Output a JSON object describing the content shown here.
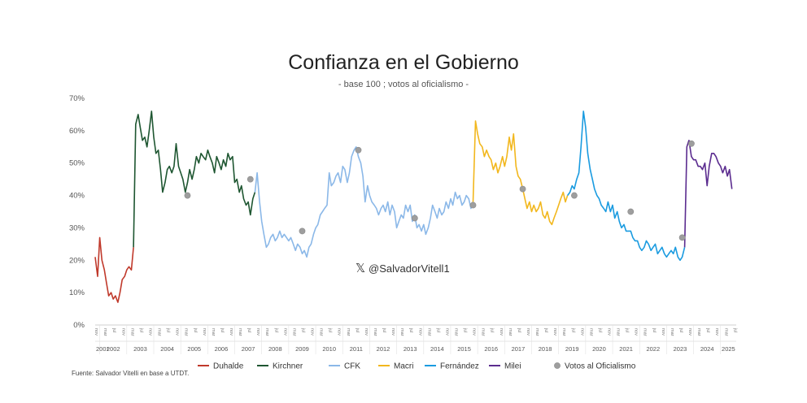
{
  "chart_data": {
    "type": "line",
    "title": "Confianza en el Gobierno",
    "subtitle": "- base 100 ; votos al oficialismo -",
    "handle": "@SalvadorVitell1",
    "source": "Fuente: Salvador Vitelli en base a UTDT.",
    "ylim": [
      0,
      70
    ],
    "y_ticks": [
      "0%",
      "10%",
      "20%",
      "30%",
      "40%",
      "50%",
      "60%",
      "70%"
    ],
    "x_range": [
      2001.83,
      2025.58
    ],
    "year_labels": [
      "2001",
      "2002",
      "2003",
      "2004",
      "2005",
      "2006",
      "2007",
      "2008",
      "2009",
      "2010",
      "2011",
      "2012",
      "2013",
      "2014",
      "2015",
      "2016",
      "2017",
      "2018",
      "2019",
      "2020",
      "2021",
      "2022",
      "2023",
      "2024",
      "2025"
    ],
    "month_labels": [
      "nov",
      "mar",
      "jul"
    ],
    "grid": false,
    "legend_position": "bottom",
    "series": [
      {
        "name": "Duhalde",
        "color": "#c0392b",
        "points": [
          [
            2001.83,
            21
          ],
          [
            2001.92,
            15
          ],
          [
            2002.0,
            27
          ],
          [
            2002.08,
            20
          ],
          [
            2002.17,
            17
          ],
          [
            2002.25,
            13
          ],
          [
            2002.33,
            9
          ],
          [
            2002.42,
            10
          ],
          [
            2002.5,
            8
          ],
          [
            2002.58,
            9
          ],
          [
            2002.67,
            7
          ],
          [
            2002.75,
            10
          ],
          [
            2002.83,
            14
          ],
          [
            2002.92,
            15
          ],
          [
            2003.0,
            17
          ],
          [
            2003.08,
            18
          ],
          [
            2003.17,
            17
          ],
          [
            2003.25,
            24
          ]
        ]
      },
      {
        "name": "Kirchner",
        "color": "#1e5631",
        "points": [
          [
            2003.25,
            24
          ],
          [
            2003.33,
            62
          ],
          [
            2003.42,
            65
          ],
          [
            2003.5,
            61
          ],
          [
            2003.58,
            57
          ],
          [
            2003.67,
            58
          ],
          [
            2003.75,
            55
          ],
          [
            2003.83,
            60
          ],
          [
            2003.92,
            66
          ],
          [
            2004.0,
            58
          ],
          [
            2004.08,
            53
          ],
          [
            2004.17,
            54
          ],
          [
            2004.25,
            48
          ],
          [
            2004.33,
            41
          ],
          [
            2004.42,
            44
          ],
          [
            2004.5,
            48
          ],
          [
            2004.58,
            49
          ],
          [
            2004.67,
            47
          ],
          [
            2004.75,
            49
          ],
          [
            2004.83,
            56
          ],
          [
            2004.92,
            49
          ],
          [
            2005.0,
            47
          ],
          [
            2005.08,
            45
          ],
          [
            2005.17,
            41
          ],
          [
            2005.25,
            44
          ],
          [
            2005.33,
            48
          ],
          [
            2005.42,
            45
          ],
          [
            2005.5,
            48
          ],
          [
            2005.58,
            52
          ],
          [
            2005.67,
            50
          ],
          [
            2005.75,
            53
          ],
          [
            2005.83,
            52
          ],
          [
            2005.92,
            51
          ],
          [
            2006.0,
            54
          ],
          [
            2006.08,
            52
          ],
          [
            2006.17,
            50
          ],
          [
            2006.25,
            47
          ],
          [
            2006.33,
            52
          ],
          [
            2006.42,
            50
          ],
          [
            2006.5,
            48
          ],
          [
            2006.58,
            51
          ],
          [
            2006.67,
            49
          ],
          [
            2006.75,
            53
          ],
          [
            2006.83,
            51
          ],
          [
            2006.92,
            52
          ],
          [
            2007.0,
            44
          ],
          [
            2007.08,
            45
          ],
          [
            2007.17,
            41
          ],
          [
            2007.25,
            43
          ],
          [
            2007.33,
            39
          ],
          [
            2007.42,
            37
          ],
          [
            2007.5,
            38
          ],
          [
            2007.58,
            34
          ],
          [
            2007.67,
            39
          ],
          [
            2007.75,
            41
          ]
        ]
      },
      {
        "name": "CFK",
        "color": "#8bb8e8",
        "points": [
          [
            2007.75,
            41
          ],
          [
            2007.83,
            47
          ],
          [
            2007.92,
            38
          ],
          [
            2008.0,
            32
          ],
          [
            2008.08,
            28
          ],
          [
            2008.17,
            24
          ],
          [
            2008.25,
            25
          ],
          [
            2008.33,
            27
          ],
          [
            2008.42,
            28
          ],
          [
            2008.5,
            26
          ],
          [
            2008.58,
            27
          ],
          [
            2008.67,
            29
          ],
          [
            2008.75,
            27
          ],
          [
            2008.83,
            28
          ],
          [
            2008.92,
            27
          ],
          [
            2009.0,
            26
          ],
          [
            2009.08,
            27
          ],
          [
            2009.17,
            25
          ],
          [
            2009.25,
            23
          ],
          [
            2009.33,
            25
          ],
          [
            2009.42,
            24
          ],
          [
            2009.5,
            22
          ],
          [
            2009.58,
            23
          ],
          [
            2009.67,
            21
          ],
          [
            2009.75,
            24
          ],
          [
            2009.83,
            25
          ],
          [
            2009.92,
            28
          ],
          [
            2010.0,
            30
          ],
          [
            2010.08,
            31
          ],
          [
            2010.17,
            34
          ],
          [
            2010.25,
            35
          ],
          [
            2010.33,
            36
          ],
          [
            2010.42,
            37
          ],
          [
            2010.5,
            47
          ],
          [
            2010.58,
            43
          ],
          [
            2010.67,
            44
          ],
          [
            2010.75,
            46
          ],
          [
            2010.83,
            47
          ],
          [
            2010.92,
            44
          ],
          [
            2011.0,
            49
          ],
          [
            2011.08,
            48
          ],
          [
            2011.17,
            44
          ],
          [
            2011.25,
            47
          ],
          [
            2011.33,
            52
          ],
          [
            2011.42,
            54
          ],
          [
            2011.5,
            55
          ],
          [
            2011.58,
            52
          ],
          [
            2011.67,
            50
          ],
          [
            2011.75,
            46
          ],
          [
            2011.83,
            38
          ],
          [
            2011.92,
            43
          ],
          [
            2012.0,
            40
          ],
          [
            2012.08,
            38
          ],
          [
            2012.17,
            37
          ],
          [
            2012.25,
            36
          ],
          [
            2012.33,
            34
          ],
          [
            2012.42,
            36
          ],
          [
            2012.5,
            37
          ],
          [
            2012.58,
            35
          ],
          [
            2012.67,
            38
          ],
          [
            2012.75,
            34
          ],
          [
            2012.83,
            37
          ],
          [
            2012.92,
            35
          ],
          [
            2013.0,
            30
          ],
          [
            2013.08,
            32
          ],
          [
            2013.17,
            34
          ],
          [
            2013.25,
            33
          ],
          [
            2013.33,
            37
          ],
          [
            2013.42,
            35
          ],
          [
            2013.5,
            37
          ],
          [
            2013.58,
            32
          ],
          [
            2013.67,
            34
          ],
          [
            2013.75,
            30
          ],
          [
            2013.83,
            31
          ],
          [
            2013.92,
            29
          ],
          [
            2014.0,
            31
          ],
          [
            2014.08,
            28
          ],
          [
            2014.17,
            30
          ],
          [
            2014.25,
            33
          ],
          [
            2014.33,
            37
          ],
          [
            2014.42,
            35
          ],
          [
            2014.5,
            33
          ],
          [
            2014.58,
            36
          ],
          [
            2014.67,
            34
          ],
          [
            2014.75,
            35
          ],
          [
            2014.83,
            38
          ],
          [
            2014.92,
            36
          ],
          [
            2015.0,
            39
          ],
          [
            2015.08,
            37
          ],
          [
            2015.17,
            41
          ],
          [
            2015.25,
            39
          ],
          [
            2015.33,
            40
          ],
          [
            2015.42,
            37
          ],
          [
            2015.5,
            38
          ],
          [
            2015.58,
            40
          ],
          [
            2015.67,
            39
          ],
          [
            2015.75,
            36
          ],
          [
            2015.83,
            38
          ]
        ]
      },
      {
        "name": "Macri",
        "color": "#f2b71d",
        "points": [
          [
            2015.83,
            38
          ],
          [
            2015.92,
            63
          ],
          [
            2016.0,
            59
          ],
          [
            2016.08,
            56
          ],
          [
            2016.17,
            55
          ],
          [
            2016.25,
            52
          ],
          [
            2016.33,
            54
          ],
          [
            2016.42,
            52
          ],
          [
            2016.5,
            51
          ],
          [
            2016.58,
            48
          ],
          [
            2016.67,
            50
          ],
          [
            2016.75,
            47
          ],
          [
            2016.83,
            49
          ],
          [
            2016.92,
            52
          ],
          [
            2017.0,
            49
          ],
          [
            2017.08,
            52
          ],
          [
            2017.17,
            58
          ],
          [
            2017.25,
            54
          ],
          [
            2017.33,
            59
          ],
          [
            2017.42,
            49
          ],
          [
            2017.5,
            46
          ],
          [
            2017.58,
            45
          ],
          [
            2017.67,
            42
          ],
          [
            2017.75,
            39
          ],
          [
            2017.83,
            36
          ],
          [
            2017.92,
            38
          ],
          [
            2018.0,
            35
          ],
          [
            2018.08,
            37
          ],
          [
            2018.17,
            35
          ],
          [
            2018.25,
            36
          ],
          [
            2018.33,
            38
          ],
          [
            2018.42,
            34
          ],
          [
            2018.5,
            33
          ],
          [
            2018.58,
            35
          ],
          [
            2018.67,
            32
          ],
          [
            2018.75,
            31
          ],
          [
            2018.83,
            33
          ],
          [
            2018.92,
            35
          ],
          [
            2019.0,
            37
          ],
          [
            2019.08,
            39
          ],
          [
            2019.17,
            41
          ],
          [
            2019.25,
            38
          ],
          [
            2019.33,
            40
          ]
        ]
      },
      {
        "name": "Fernández",
        "color": "#1a9be0",
        "points": [
          [
            2019.33,
            40
          ],
          [
            2019.42,
            41
          ],
          [
            2019.5,
            43
          ],
          [
            2019.58,
            42
          ],
          [
            2019.67,
            45
          ],
          [
            2019.75,
            47
          ],
          [
            2019.83,
            55
          ],
          [
            2019.92,
            66
          ],
          [
            2020.0,
            61
          ],
          [
            2020.08,
            53
          ],
          [
            2020.17,
            48
          ],
          [
            2020.25,
            45
          ],
          [
            2020.33,
            42
          ],
          [
            2020.42,
            40
          ],
          [
            2020.5,
            39
          ],
          [
            2020.58,
            37
          ],
          [
            2020.67,
            36
          ],
          [
            2020.75,
            35
          ],
          [
            2020.83,
            38
          ],
          [
            2020.92,
            35
          ],
          [
            2021.0,
            37
          ],
          [
            2021.08,
            33
          ],
          [
            2021.17,
            35
          ],
          [
            2021.25,
            32
          ],
          [
            2021.33,
            30
          ],
          [
            2021.42,
            31
          ],
          [
            2021.5,
            29
          ],
          [
            2021.58,
            29
          ],
          [
            2021.67,
            29
          ],
          [
            2021.75,
            27
          ],
          [
            2021.83,
            26
          ],
          [
            2021.92,
            26
          ],
          [
            2022.0,
            24
          ],
          [
            2022.08,
            23
          ],
          [
            2022.17,
            24
          ],
          [
            2022.25,
            26
          ],
          [
            2022.33,
            25
          ],
          [
            2022.42,
            23
          ],
          [
            2022.5,
            24
          ],
          [
            2022.58,
            25
          ],
          [
            2022.67,
            22
          ],
          [
            2022.75,
            23
          ],
          [
            2022.83,
            24
          ],
          [
            2022.92,
            22
          ],
          [
            2023.0,
            21
          ],
          [
            2023.08,
            22
          ],
          [
            2023.17,
            23
          ],
          [
            2023.25,
            22
          ],
          [
            2023.33,
            24
          ],
          [
            2023.42,
            21
          ],
          [
            2023.5,
            20
          ],
          [
            2023.58,
            21
          ],
          [
            2023.67,
            24
          ]
        ]
      },
      {
        "name": "Milei",
        "color": "#5b2c8f",
        "points": [
          [
            2023.67,
            24
          ],
          [
            2023.75,
            55
          ],
          [
            2023.83,
            57
          ],
          [
            2023.92,
            52
          ],
          [
            2024.0,
            51
          ],
          [
            2024.08,
            51
          ],
          [
            2024.17,
            49
          ],
          [
            2024.25,
            49
          ],
          [
            2024.33,
            48
          ],
          [
            2024.42,
            50
          ],
          [
            2024.5,
            43
          ],
          [
            2024.58,
            49
          ],
          [
            2024.67,
            53
          ],
          [
            2024.75,
            53
          ],
          [
            2024.83,
            52
          ],
          [
            2024.92,
            50
          ],
          [
            2025.0,
            49
          ],
          [
            2025.08,
            47
          ],
          [
            2025.17,
            49
          ],
          [
            2025.25,
            46
          ],
          [
            2025.33,
            48
          ],
          [
            2025.42,
            42
          ]
        ]
      }
    ],
    "votes": {
      "name": "Votos al Oficialismo",
      "color": "#9e9e9e",
      "points": [
        [
          2005.25,
          40
        ],
        [
          2007.58,
          45
        ],
        [
          2009.5,
          29
        ],
        [
          2011.58,
          54
        ],
        [
          2013.67,
          33
        ],
        [
          2015.83,
          37
        ],
        [
          2017.67,
          42
        ],
        [
          2019.58,
          40
        ],
        [
          2021.67,
          35
        ],
        [
          2023.58,
          27
        ],
        [
          2023.92,
          56
        ]
      ]
    }
  }
}
